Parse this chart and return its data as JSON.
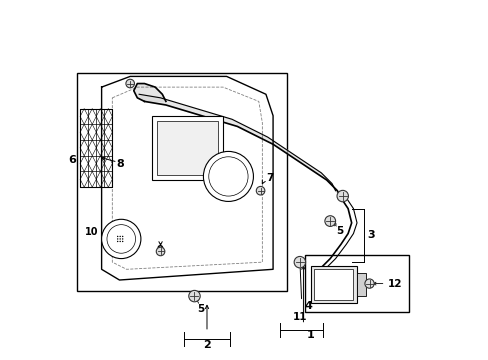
{
  "bg_color": "#ffffff",
  "line_color": "#000000",
  "gray_color": "#888888",
  "light_gray": "#cccccc"
}
